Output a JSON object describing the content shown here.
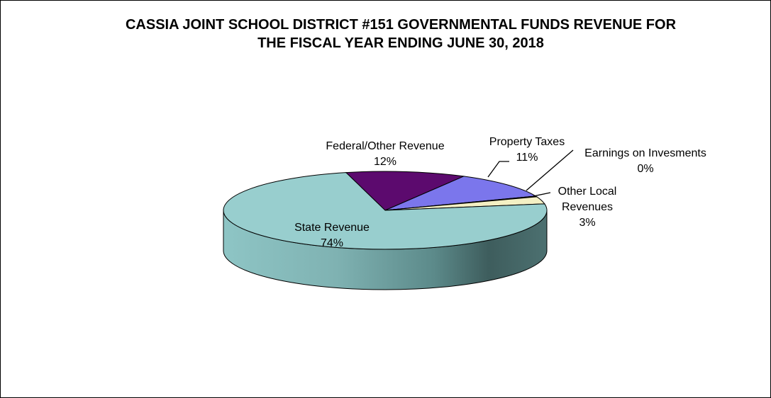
{
  "chart_data": {
    "type": "pie",
    "title_line1": "CASSIA JOINT SCHOOL DISTRICT #151 GOVERNMENTAL FUNDS REVENUE FOR",
    "title_line2": "THE FISCAL  YEAR ENDING JUNE 30, 2018",
    "slices": [
      {
        "name": "Federal/Other Revenue",
        "value": 12,
        "label": "12%",
        "color": "#5c0a6e"
      },
      {
        "name": "Property Taxes",
        "value": 11,
        "label": "11%",
        "color": "#7b76ec"
      },
      {
        "name": "Earnings on Invesments",
        "value": 0.3,
        "label": "0%",
        "color": "#8b1a50"
      },
      {
        "name": "Other Local Revenues",
        "value": 3,
        "label": "3%",
        "color": "#f4f0c4"
      },
      {
        "name": "State Revenue",
        "value": 74,
        "label": "74%",
        "color": "#98cece"
      }
    ],
    "labels": {
      "federal": {
        "name": "Federal/Other Revenue",
        "pct": "12%"
      },
      "property": {
        "name": "Property Taxes",
        "pct": "11%"
      },
      "earnings": {
        "name": "Earnings on Invesments",
        "pct": "0%"
      },
      "other_local": {
        "line1": "Other Local",
        "line2": "Revenues",
        "pct": "3%"
      },
      "state": {
        "name": "State Revenue",
        "pct": "74%"
      }
    }
  }
}
